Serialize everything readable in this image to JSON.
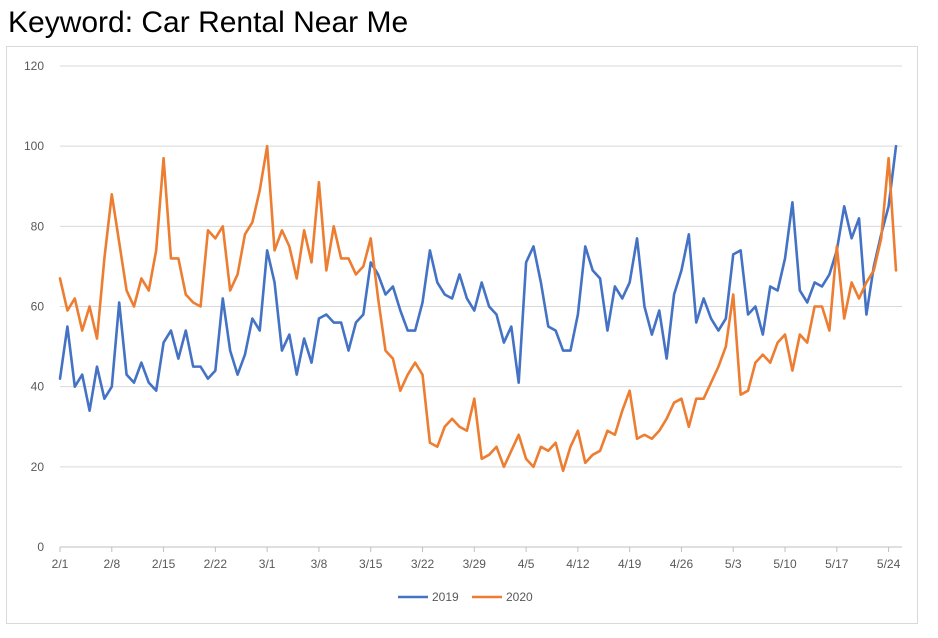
{
  "title": "Keyword: Car Rental Near Me",
  "chart_data": {
    "type": "line",
    "title": "Keyword: Car Rental Near Me",
    "ylim": [
      0,
      120
    ],
    "yticks": [
      0,
      20,
      40,
      60,
      80,
      100,
      120
    ],
    "xtick_labels": [
      "2/1",
      "2/8",
      "2/15",
      "2/22",
      "3/1",
      "3/8",
      "3/15",
      "3/22",
      "3/29",
      "4/5",
      "4/12",
      "4/19",
      "4/26",
      "5/3",
      "5/10",
      "5/17",
      "5/24"
    ],
    "x_start": "2/1",
    "x_end": "5/25",
    "grid": "horizontal",
    "legend_position": "bottom",
    "series": [
      {
        "name": "2019",
        "color": "#4472c4",
        "values": [
          42,
          55,
          40,
          43,
          34,
          45,
          37,
          40,
          61,
          43,
          41,
          46,
          41,
          39,
          51,
          54,
          47,
          54,
          45,
          45,
          42,
          44,
          62,
          49,
          43,
          48,
          57,
          54,
          74,
          66,
          49,
          53,
          43,
          52,
          46,
          57,
          58,
          56,
          56,
          49,
          56,
          58,
          71,
          68,
          63,
          65,
          59,
          54,
          54,
          61,
          74,
          66,
          63,
          62,
          68,
          62,
          59,
          66,
          60,
          58,
          51,
          55,
          41,
          71,
          75,
          66,
          55,
          54,
          49,
          49,
          58,
          75,
          69,
          67,
          54,
          65,
          62,
          66,
          77,
          60,
          53,
          59,
          47,
          63,
          69,
          78,
          56,
          62,
          57,
          54,
          57,
          73,
          74,
          58,
          60,
          53,
          65,
          64,
          72,
          86,
          64,
          61,
          66,
          65,
          68,
          74,
          85,
          77,
          82,
          58,
          70,
          78,
          85,
          100
        ]
      },
      {
        "name": "2020",
        "color": "#ed7d31",
        "values": [
          67,
          59,
          62,
          54,
          60,
          52,
          72,
          88,
          76,
          64,
          60,
          67,
          64,
          74,
          97,
          72,
          72,
          63,
          61,
          60,
          79,
          77,
          80,
          64,
          68,
          78,
          81,
          89,
          100,
          74,
          79,
          75,
          67,
          79,
          71,
          91,
          69,
          80,
          72,
          72,
          68,
          70,
          77,
          62,
          49,
          47,
          39,
          43,
          46,
          43,
          26,
          25,
          30,
          32,
          30,
          29,
          37,
          22,
          23,
          25,
          20,
          24,
          28,
          22,
          20,
          25,
          24,
          26,
          19,
          25,
          29,
          21,
          23,
          24,
          29,
          28,
          34,
          39,
          27,
          28,
          27,
          29,
          32,
          36,
          37,
          30,
          37,
          37,
          41,
          45,
          50,
          63,
          38,
          39,
          46,
          48,
          46,
          51,
          53,
          44,
          53,
          51,
          60,
          60,
          54,
          75,
          57,
          66,
          62,
          66,
          69,
          77,
          97,
          69
        ]
      }
    ]
  }
}
